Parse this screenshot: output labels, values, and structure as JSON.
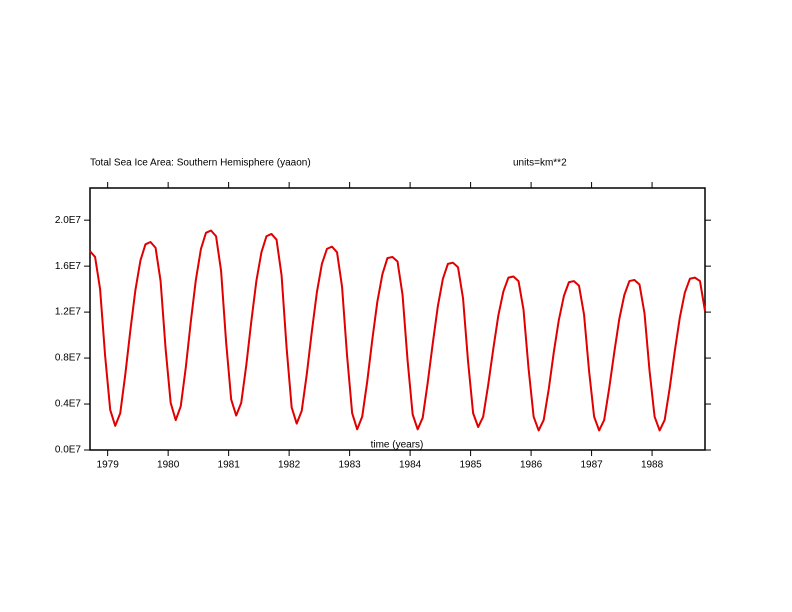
{
  "chart_data": {
    "type": "line",
    "title": "Total Sea Ice Area: Southern Hemisphere (yaaon)",
    "subtitle": "units=km**2",
    "xlabel": "time (years)",
    "xlim": [
      1978.708,
      1988.875
    ],
    "xticks": [
      1979,
      1980,
      1981,
      1982,
      1983,
      1984,
      1985,
      1986,
      1987,
      1988
    ],
    "ylim": [
      0,
      22800000.0
    ],
    "yticks": [
      {
        "value": 0,
        "label": "0.0E7"
      },
      {
        "value": 4000000,
        "label": "0.4E7"
      },
      {
        "value": 8000000,
        "label": "0.8E7"
      },
      {
        "value": 12000000,
        "label": "1.2E7"
      },
      {
        "value": 16000000,
        "label": "1.6E7"
      },
      {
        "value": 20000000,
        "label": "2.0E7"
      }
    ],
    "x": [
      1978.708,
      1978.792,
      1978.875,
      1978.958,
      1979.042,
      1979.125,
      1979.208,
      1979.292,
      1979.375,
      1979.458,
      1979.542,
      1979.625,
      1979.708,
      1979.792,
      1979.875,
      1979.958,
      1980.042,
      1980.125,
      1980.208,
      1980.292,
      1980.375,
      1980.458,
      1980.542,
      1980.625,
      1980.708,
      1980.792,
      1980.875,
      1980.958,
      1981.042,
      1981.125,
      1981.208,
      1981.292,
      1981.375,
      1981.458,
      1981.542,
      1981.625,
      1981.708,
      1981.792,
      1981.875,
      1981.958,
      1982.042,
      1982.125,
      1982.208,
      1982.292,
      1982.375,
      1982.458,
      1982.542,
      1982.625,
      1982.708,
      1982.792,
      1982.875,
      1982.958,
      1983.042,
      1983.125,
      1983.208,
      1983.292,
      1983.375,
      1983.458,
      1983.542,
      1983.625,
      1983.708,
      1983.792,
      1983.875,
      1983.958,
      1984.042,
      1984.125,
      1984.208,
      1984.292,
      1984.375,
      1984.458,
      1984.542,
      1984.625,
      1984.708,
      1984.792,
      1984.875,
      1984.958,
      1985.042,
      1985.125,
      1985.208,
      1985.292,
      1985.375,
      1985.458,
      1985.542,
      1985.625,
      1985.708,
      1985.792,
      1985.875,
      1985.958,
      1986.042,
      1986.125,
      1986.208,
      1986.292,
      1986.375,
      1986.458,
      1986.542,
      1986.625,
      1986.708,
      1986.792,
      1986.875,
      1986.958,
      1987.042,
      1987.125,
      1987.208,
      1987.292,
      1987.375,
      1987.458,
      1987.542,
      1987.625,
      1987.708,
      1987.792,
      1987.875,
      1987.958,
      1988.042,
      1988.125,
      1988.208,
      1988.292,
      1988.375,
      1988.458,
      1988.542,
      1988.625,
      1988.708,
      1988.792,
      1988.875
    ],
    "series": [
      {
        "color": "#e00000",
        "values": [
          17300000.0,
          16800000.0,
          14000000.0,
          8200000.0,
          3500000.0,
          2100000.0,
          3200000.0,
          6600000.0,
          10400000.0,
          13900000.0,
          16500000.0,
          17900000.0,
          18100000.0,
          17600000.0,
          14700000.0,
          8800000.0,
          4100000.0,
          2600000.0,
          3800000.0,
          7200000.0,
          11200000.0,
          14800000.0,
          17500000.0,
          18900000.0,
          19100000.0,
          18600000.0,
          15600000.0,
          9400000.0,
          4400000.0,
          3000000.0,
          4100000.0,
          7400000.0,
          11200000.0,
          14700000.0,
          17200000.0,
          18600000.0,
          18800000.0,
          18300000.0,
          15200000.0,
          8900000.0,
          3700000.0,
          2300000.0,
          3400000.0,
          6600000.0,
          10300000.0,
          13700000.0,
          16200000.0,
          17500000.0,
          17700000.0,
          17200000.0,
          14200000.0,
          8200000.0,
          3200000.0,
          1800000.0,
          2900000.0,
          6000000.0,
          9600000.0,
          12900000.0,
          15300000.0,
          16700000.0,
          16800000.0,
          16400000.0,
          13500000.0,
          7800000.0,
          3100000.0,
          1800000.0,
          2800000.0,
          5900000.0,
          9300000.0,
          12500000.0,
          14900000.0,
          16200000.0,
          16300000.0,
          15900000.0,
          13200000.0,
          7700000.0,
          3200000.0,
          2000000.0,
          2900000.0,
          5700000.0,
          8800000.0,
          11700000.0,
          13800000.0,
          15000000.0,
          15100000.0,
          14700000.0,
          12200000.0,
          7100000.0,
          2900000.0,
          1700000.0,
          2600000.0,
          5300000.0,
          8500000.0,
          11300000.0,
          13400000.0,
          14600000.0,
          14700000.0,
          14300000.0,
          11800000.0,
          6900000.0,
          2900000.0,
          1700000.0,
          2600000.0,
          5400000.0,
          8500000.0,
          11400000.0,
          13500000.0,
          14700000.0,
          14800000.0,
          14400000.0,
          11900000.0,
          6900000.0,
          2900000.0,
          1700000.0,
          2600000.0,
          5400000.0,
          8600000.0,
          11500000.0,
          13700000.0,
          14900000.0,
          15000000.0,
          14700000.0,
          12100000.0
        ]
      }
    ]
  }
}
